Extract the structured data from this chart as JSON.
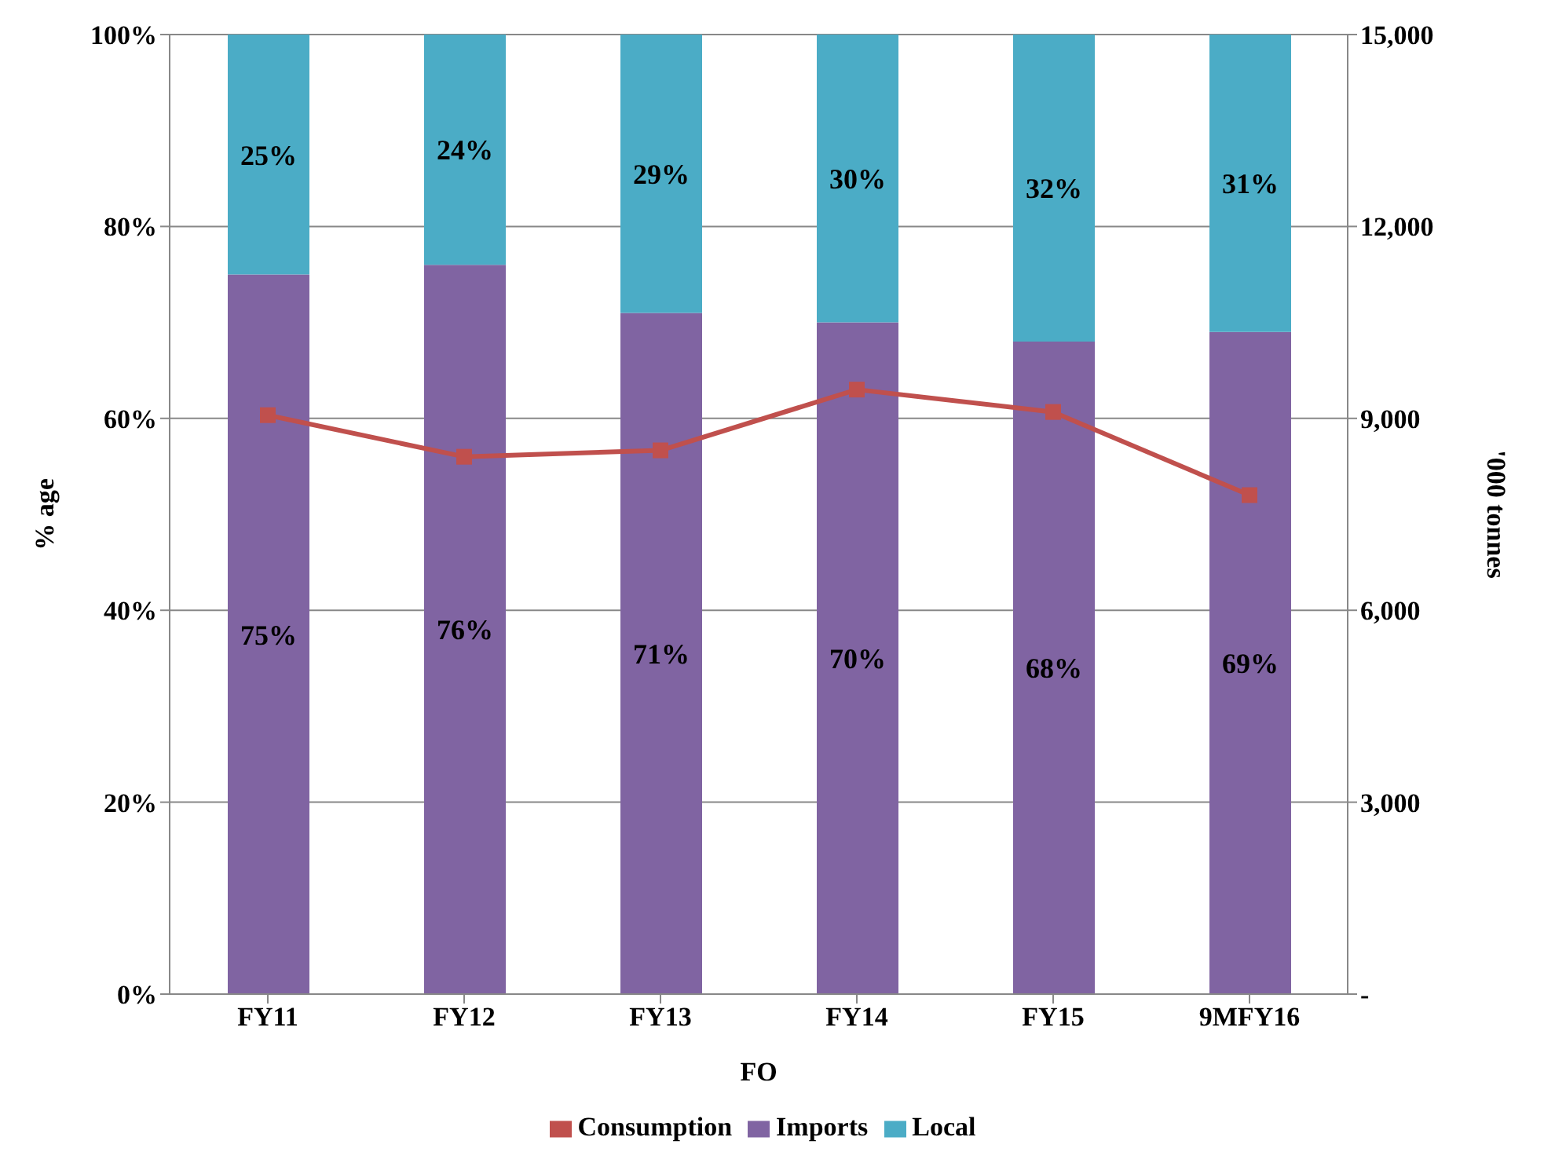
{
  "chart_data": {
    "type": "bar",
    "stacked": true,
    "categories": [
      "FY11",
      "FY12",
      "FY13",
      "FY14",
      "FY15",
      "9MFY16"
    ],
    "xlabel": "FO",
    "ylabel": "%  age",
    "y2label": "'000 tonnes",
    "series": [
      {
        "name": "Imports",
        "color": "#8064a2",
        "values": [
          75,
          76,
          71,
          70,
          68,
          69
        ],
        "value_labels": [
          "75%",
          "76%",
          "71%",
          "70%",
          "68%",
          "69%"
        ]
      },
      {
        "name": "Local",
        "color": "#4bacc6",
        "values": [
          25,
          24,
          29,
          30,
          32,
          31
        ],
        "value_labels": [
          "25%",
          "24%",
          "29%",
          "30%",
          "32%",
          "31%"
        ]
      },
      {
        "name": "Consumption",
        "type": "line",
        "axis": "y2",
        "color": "#c0504d",
        "marker": "square",
        "values": [
          9050,
          8400,
          8500,
          9450,
          9100,
          7800
        ]
      }
    ],
    "ylim": [
      0,
      100
    ],
    "yticks": [
      {
        "value": 0,
        "label": "0%"
      },
      {
        "value": 20,
        "label": "20%"
      },
      {
        "value": 40,
        "label": "40%"
      },
      {
        "value": 60,
        "label": "60%"
      },
      {
        "value": 80,
        "label": "80%"
      },
      {
        "value": 100,
        "label": "100%"
      }
    ],
    "y2lim": [
      0,
      15000
    ],
    "y2ticks": [
      {
        "value": 0,
        "label": "-"
      },
      {
        "value": 3000,
        "label": "3,000"
      },
      {
        "value": 6000,
        "label": "6,000"
      },
      {
        "value": 9000,
        "label": "9,000"
      },
      {
        "value": 12000,
        "label": "12,000"
      },
      {
        "value": 15000,
        "label": "15,000"
      }
    ],
    "grid": "y",
    "legend": "bottom"
  }
}
